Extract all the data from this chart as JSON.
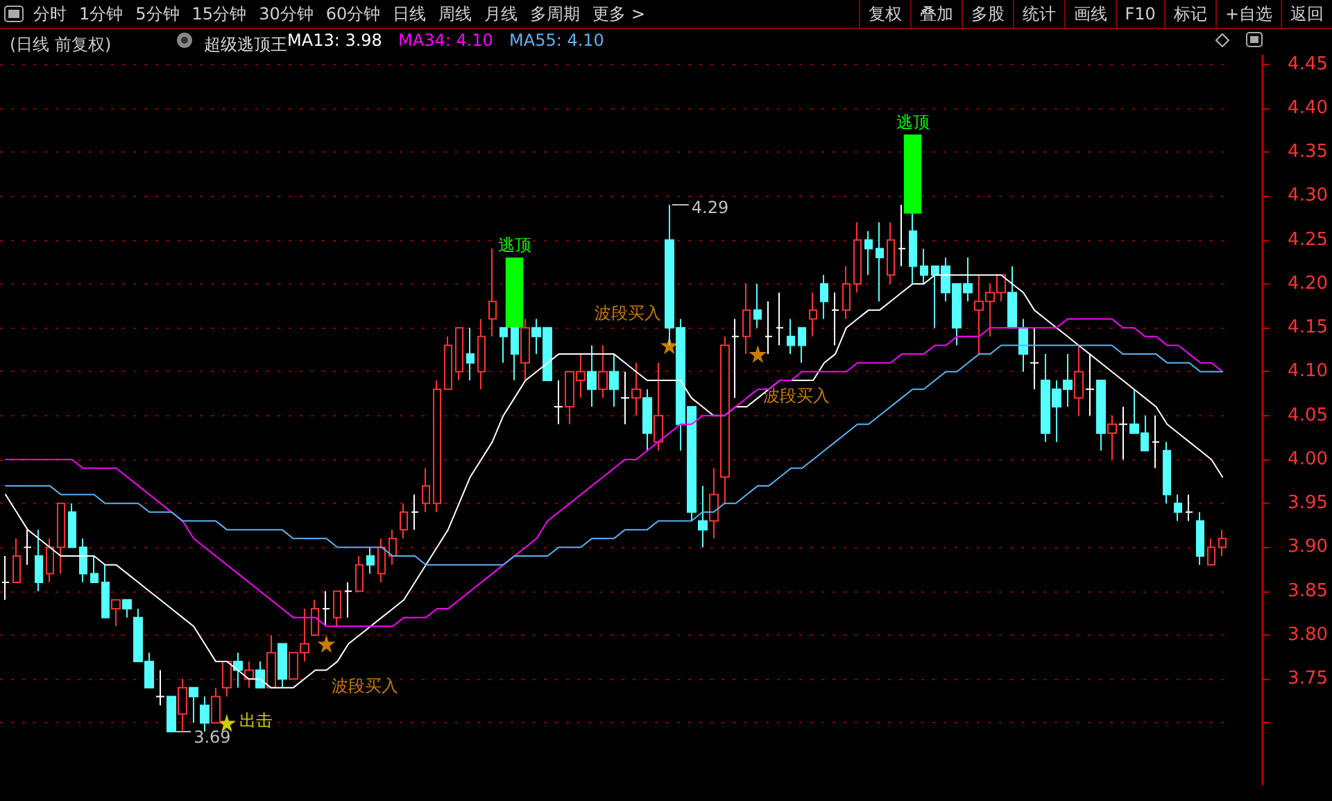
{
  "chart_data": {
    "type": "candlestick",
    "title": "(日线 前复权)",
    "subtitle": "超级逃顶王",
    "annotations": [
      "分时",
      "1分钟",
      "5分钟",
      "15分钟",
      "30分钟",
      "60分钟",
      "日线",
      "周线",
      "月线",
      "多周期",
      "更多 >",
      "复权",
      "叠加",
      "多股",
      "统计",
      "画线",
      "F10",
      "标记",
      "+自选",
      "返回",
      "4.29",
      "3.69"
    ],
    "categories": [
      null,
      null,
      null,
      null,
      null,
      null,
      null,
      null,
      null,
      null,
      null,
      null,
      null,
      null,
      null,
      null,
      null,
      null,
      null,
      null,
      null,
      null,
      null,
      null,
      null,
      null,
      null,
      null,
      null,
      null,
      null,
      null,
      null,
      null,
      null,
      null,
      null,
      null,
      null,
      null,
      null,
      null,
      null,
      null,
      null,
      null,
      null,
      null,
      null,
      null,
      null,
      null,
      null,
      null,
      null,
      null,
      null,
      null,
      null,
      null,
      null,
      null,
      null,
      null,
      null,
      null,
      null,
      null,
      null,
      null,
      null,
      null,
      null,
      null,
      null,
      null,
      null,
      null,
      null,
      null,
      null,
      null,
      null,
      null,
      null,
      null,
      null,
      null,
      null,
      null,
      null,
      null,
      null,
      null,
      null,
      null,
      null,
      null,
      null,
      null,
      null,
      null,
      null,
      null,
      null,
      null,
      null,
      null,
      null,
      null,
      null
    ],
    "ylim": [
      3.63,
      4.46
    ],
    "yticks": [
      {
        "value": 3.7,
        "label": null
      },
      {
        "value": 3.75,
        "label": "3.75"
      },
      {
        "value": 3.8,
        "label": "3.80"
      },
      {
        "value": 3.85,
        "label": "3.85"
      },
      {
        "value": 3.9,
        "label": "3.90"
      },
      {
        "value": 3.95,
        "label": "3.95"
      },
      {
        "value": 4.0,
        "label": "4.00"
      },
      {
        "value": 4.05,
        "label": "4.05"
      },
      {
        "value": 4.1,
        "label": "4.10"
      },
      {
        "value": 4.15,
        "label": "4.15"
      },
      {
        "value": 4.2,
        "label": "4.20"
      },
      {
        "value": 4.25,
        "label": "4.25"
      },
      {
        "value": 4.3,
        "label": "4.30"
      },
      {
        "value": 4.35,
        "label": "4.35"
      },
      {
        "value": 4.4,
        "label": "4.40"
      },
      {
        "value": 4.45,
        "label": "4.45"
      }
    ],
    "grid": "y",
    "tick_labels": "y",
    "line_style": "solid",
    "series": [
      {
        "ohlc": [
          [
            3.86,
            3.89,
            3.84,
            3.86
          ],
          [
            3.86,
            3.91,
            3.86,
            3.89
          ],
          [
            3.9,
            3.92,
            3.88,
            3.9
          ],
          [
            3.89,
            3.92,
            3.85,
            3.86
          ],
          [
            3.87,
            3.91,
            3.86,
            3.9
          ],
          [
            3.9,
            3.95,
            3.87,
            3.95
          ],
          [
            3.94,
            3.95,
            3.9,
            3.9
          ],
          [
            3.9,
            3.91,
            3.86,
            3.87
          ],
          [
            3.87,
            3.89,
            3.86,
            3.86
          ],
          [
            3.86,
            3.88,
            3.82,
            3.82
          ],
          [
            3.83,
            3.84,
            3.81,
            3.84
          ],
          [
            3.84,
            3.84,
            3.82,
            3.83
          ],
          [
            3.82,
            3.83,
            3.77,
            3.77
          ],
          [
            3.77,
            3.78,
            3.74,
            3.74
          ],
          [
            3.73,
            3.76,
            3.72,
            3.73
          ],
          [
            3.73,
            3.73,
            3.69,
            3.69
          ],
          [
            3.71,
            3.75,
            3.69,
            3.74
          ],
          [
            3.74,
            3.74,
            3.7,
            3.73
          ],
          [
            3.72,
            3.73,
            3.69,
            3.7
          ],
          [
            3.7,
            3.74,
            3.7,
            3.73
          ],
          [
            3.74,
            3.77,
            3.73,
            3.77
          ],
          [
            3.77,
            3.78,
            3.74,
            3.76
          ],
          [
            3.75,
            3.77,
            3.74,
            3.76
          ],
          [
            3.76,
            3.77,
            3.74,
            3.74
          ],
          [
            3.74,
            3.8,
            3.74,
            3.78
          ],
          [
            3.79,
            3.79,
            3.74,
            3.75
          ],
          [
            3.75,
            3.78,
            3.75,
            3.78
          ],
          [
            3.78,
            3.83,
            3.77,
            3.79
          ],
          [
            3.8,
            3.84,
            3.8,
            3.83
          ],
          [
            3.83,
            3.85,
            3.81,
            3.83
          ],
          [
            3.82,
            3.85,
            3.81,
            3.85
          ],
          [
            3.85,
            3.86,
            3.82,
            3.85
          ],
          [
            3.85,
            3.89,
            3.85,
            3.88
          ],
          [
            3.89,
            3.9,
            3.87,
            3.88
          ],
          [
            3.87,
            3.91,
            3.86,
            3.9
          ],
          [
            3.89,
            3.92,
            3.88,
            3.91
          ],
          [
            3.92,
            3.95,
            3.91,
            3.94
          ],
          [
            3.94,
            3.96,
            3.92,
            3.94
          ],
          [
            3.95,
            3.99,
            3.94,
            3.97
          ],
          [
            3.95,
            4.09,
            3.94,
            4.08
          ],
          [
            4.08,
            4.14,
            4.08,
            4.13
          ],
          [
            4.1,
            4.15,
            4.09,
            4.15
          ],
          [
            4.12,
            4.15,
            4.09,
            4.11
          ],
          [
            4.1,
            4.16,
            4.08,
            4.14
          ],
          [
            4.16,
            4.24,
            4.14,
            4.18
          ],
          [
            4.15,
            4.15,
            4.11,
            4.14
          ],
          [
            4.15,
            4.15,
            4.09,
            4.12
          ],
          [
            4.11,
            4.16,
            4.09,
            4.15
          ],
          [
            4.15,
            4.16,
            4.12,
            4.14
          ],
          [
            4.15,
            4.15,
            4.09,
            4.09
          ],
          [
            4.06,
            4.09,
            4.04,
            4.06
          ],
          [
            4.06,
            4.1,
            4.04,
            4.1
          ],
          [
            4.09,
            4.12,
            4.07,
            4.1
          ],
          [
            4.1,
            4.13,
            4.06,
            4.08
          ],
          [
            4.08,
            4.13,
            4.07,
            4.1
          ],
          [
            4.1,
            4.12,
            4.06,
            4.08
          ],
          [
            4.07,
            4.1,
            4.04,
            4.07
          ],
          [
            4.07,
            4.11,
            4.05,
            4.08
          ],
          [
            4.07,
            4.08,
            4.01,
            4.03
          ],
          [
            4.02,
            4.11,
            4.01,
            4.05
          ],
          [
            4.25,
            4.29,
            4.13,
            4.15
          ],
          [
            4.15,
            4.16,
            4.01,
            4.04
          ],
          [
            4.06,
            4.06,
            3.93,
            3.94
          ],
          [
            3.93,
            3.97,
            3.9,
            3.92
          ],
          [
            3.93,
            3.99,
            3.91,
            3.96
          ],
          [
            3.98,
            4.14,
            3.95,
            4.13
          ],
          [
            4.14,
            4.16,
            4.07,
            4.14
          ],
          [
            4.14,
            4.2,
            4.12,
            4.17
          ],
          [
            4.17,
            4.2,
            4.15,
            4.16
          ],
          [
            4.14,
            4.18,
            4.12,
            4.14
          ],
          [
            4.15,
            4.19,
            4.13,
            4.15
          ],
          [
            4.14,
            4.16,
            4.12,
            4.13
          ],
          [
            4.15,
            4.15,
            4.11,
            4.13
          ],
          [
            4.16,
            4.19,
            4.14,
            4.17
          ],
          [
            4.2,
            4.21,
            4.16,
            4.18
          ],
          [
            4.17,
            4.19,
            4.13,
            4.17
          ],
          [
            4.17,
            4.22,
            4.16,
            4.2
          ],
          [
            4.2,
            4.27,
            4.19,
            4.25
          ],
          [
            4.25,
            4.26,
            4.21,
            4.24
          ],
          [
            4.24,
            4.27,
            4.18,
            4.23
          ],
          [
            4.21,
            4.27,
            4.2,
            4.25
          ],
          [
            4.24,
            4.29,
            4.22,
            4.24
          ],
          [
            4.26,
            4.28,
            4.2,
            4.22
          ],
          [
            4.22,
            4.24,
            4.2,
            4.21
          ],
          [
            4.22,
            4.22,
            4.15,
            4.21
          ],
          [
            4.22,
            4.23,
            4.18,
            4.19
          ],
          [
            4.2,
            4.2,
            4.13,
            4.15
          ],
          [
            4.2,
            4.23,
            4.18,
            4.19
          ],
          [
            4.17,
            4.21,
            4.12,
            4.18
          ],
          [
            4.18,
            4.2,
            4.14,
            4.19
          ],
          [
            4.19,
            4.21,
            4.18,
            4.21
          ],
          [
            4.19,
            4.22,
            4.15,
            4.15
          ],
          [
            4.15,
            4.16,
            4.1,
            4.12
          ],
          [
            4.11,
            4.15,
            4.08,
            4.11
          ],
          [
            4.09,
            4.12,
            4.02,
            4.03
          ],
          [
            4.08,
            4.09,
            4.02,
            4.06
          ],
          [
            4.09,
            4.12,
            4.06,
            4.08
          ],
          [
            4.07,
            4.13,
            4.05,
            4.1
          ],
          [
            4.08,
            4.12,
            4.05,
            4.08
          ],
          [
            4.09,
            4.09,
            4.01,
            4.03
          ],
          [
            4.03,
            4.05,
            4.0,
            4.04
          ],
          [
            4.04,
            4.06,
            4.0,
            4.04
          ],
          [
            4.04,
            4.08,
            4.03,
            4.03
          ],
          [
            4.03,
            4.05,
            4.01,
            4.01
          ],
          [
            4.02,
            4.05,
            3.99,
            4.02
          ],
          [
            4.01,
            4.02,
            3.95,
            3.96
          ],
          [
            3.95,
            3.96,
            3.93,
            3.94
          ],
          [
            3.94,
            3.96,
            3.93,
            3.94
          ],
          [
            3.93,
            3.94,
            3.88,
            3.89
          ],
          [
            3.88,
            3.91,
            3.88,
            3.9
          ],
          [
            3.9,
            3.92,
            3.89,
            3.91
          ]
        ],
        "colors": [
          "#ffffff",
          "#ff3232",
          "#ffffff",
          "#54ffff",
          "#ff3232",
          "#ff3232",
          "#54ffff",
          "#54ffff",
          "#54ffff",
          "#54ffff",
          "#ff3232",
          "#54ffff",
          "#54ffff",
          "#54ffff",
          "#ffffff",
          "#54ffff",
          "#ff3232",
          "#54ffff",
          "#54ffff",
          "#ff3232",
          "#ff3232",
          "#54ffff",
          "#ff3232",
          "#54ffff",
          "#ff3232",
          "#54ffff",
          "#ff3232",
          "#ff3232",
          "#ff3232",
          "#ffffff",
          "#ff3232",
          "#ffffff",
          "#ff3232",
          "#54ffff",
          "#ff3232",
          "#ff3232",
          "#ff3232",
          "#ffffff",
          "#ff3232",
          "#ff3232",
          "#ff3232",
          "#ff3232",
          "#54ffff",
          "#ff3232",
          "#ff3232",
          "#54ffff",
          "#54ffff",
          "#ff3232",
          "#54ffff",
          "#54ffff",
          "#ffffff",
          "#ff3232",
          "#ff3232",
          "#54ffff",
          "#ff3232",
          "#54ffff",
          "#ffffff",
          "#ff3232",
          "#54ffff",
          "#ff3232",
          "#54ffff",
          "#54ffff",
          "#54ffff",
          "#54ffff",
          "#ff3232",
          "#ff3232",
          "#ffffff",
          "#ff3232",
          "#54ffff",
          "#ffffff",
          "#ffffff",
          "#54ffff",
          "#54ffff",
          "#ff3232",
          "#54ffff",
          "#ffffff",
          "#ff3232",
          "#ff3232",
          "#54ffff",
          "#54ffff",
          "#ff3232",
          "#ffffff",
          "#54ffff",
          "#54ffff",
          "#54ffff",
          "#54ffff",
          "#54ffff",
          "#54ffff",
          "#ff3232",
          "#ff3232",
          "#ff3232",
          "#54ffff",
          "#54ffff",
          "#ffffff",
          "#54ffff",
          "#54ffff",
          "#54ffff",
          "#ff3232",
          "#ffffff",
          "#54ffff",
          "#ff3232",
          "#ffffff",
          "#54ffff",
          "#54ffff",
          "#ffffff",
          "#54ffff",
          "#54ffff",
          "#ffffff",
          "#54ffff",
          "#ff3232",
          "#ff3232"
        ]
      },
      {
        "type": "line",
        "name": "MA13: 3.98",
        "color": "#ffffff",
        "values": [
          3.96,
          3.94,
          3.92,
          3.91,
          3.9,
          3.89,
          3.89,
          3.89,
          3.89,
          3.88,
          3.88,
          3.87,
          3.86,
          3.85,
          3.84,
          3.83,
          3.82,
          3.81,
          3.79,
          3.77,
          3.77,
          3.76,
          3.75,
          3.75,
          3.74,
          3.74,
          3.74,
          3.75,
          3.76,
          3.76,
          3.77,
          3.79,
          3.8,
          3.81,
          3.82,
          3.83,
          3.84,
          3.86,
          3.88,
          3.9,
          3.92,
          3.95,
          3.98,
          4.0,
          4.02,
          4.05,
          4.07,
          4.09,
          4.1,
          4.11,
          4.12,
          4.12,
          4.12,
          4.12,
          4.12,
          4.12,
          4.11,
          4.1,
          4.09,
          4.09,
          4.09,
          4.09,
          4.07,
          4.06,
          4.05,
          4.05,
          4.06,
          4.06,
          4.07,
          4.08,
          4.09,
          4.09,
          4.09,
          4.09,
          4.11,
          4.12,
          4.15,
          4.16,
          4.17,
          4.17,
          4.18,
          4.19,
          4.2,
          4.2,
          4.21,
          4.21,
          4.21,
          4.21,
          4.21,
          4.21,
          4.21,
          4.2,
          4.19,
          4.17,
          4.16,
          4.15,
          4.14,
          4.13,
          4.12,
          4.11,
          4.1,
          4.09,
          4.08,
          4.07,
          4.06,
          4.04,
          4.03,
          4.02,
          4.01,
          4.0,
          3.98
        ]
      },
      {
        "type": "line",
        "name": "MA34: 4.10",
        "color": "#ff00ff",
        "values": [
          4.0,
          4.0,
          4.0,
          4.0,
          4.0,
          4.0,
          4.0,
          3.99,
          3.99,
          3.99,
          3.99,
          3.98,
          3.97,
          3.96,
          3.95,
          3.94,
          3.93,
          3.91,
          3.9,
          3.89,
          3.88,
          3.87,
          3.86,
          3.85,
          3.84,
          3.83,
          3.82,
          3.82,
          3.82,
          3.81,
          3.81,
          3.81,
          3.81,
          3.81,
          3.81,
          3.81,
          3.82,
          3.82,
          3.82,
          3.83,
          3.83,
          3.84,
          3.85,
          3.86,
          3.87,
          3.88,
          3.89,
          3.9,
          3.91,
          3.93,
          3.94,
          3.95,
          3.96,
          3.97,
          3.98,
          3.99,
          4.0,
          4.0,
          4.01,
          4.02,
          4.03,
          4.04,
          4.04,
          4.05,
          4.05,
          4.05,
          4.06,
          4.07,
          4.08,
          4.08,
          4.09,
          4.09,
          4.1,
          4.1,
          4.1,
          4.1,
          4.1,
          4.11,
          4.11,
          4.11,
          4.11,
          4.12,
          4.12,
          4.12,
          4.13,
          4.13,
          4.14,
          4.14,
          4.14,
          4.15,
          4.15,
          4.15,
          4.15,
          4.15,
          4.15,
          4.15,
          4.16,
          4.16,
          4.16,
          4.16,
          4.16,
          4.15,
          4.15,
          4.14,
          4.14,
          4.13,
          4.13,
          4.12,
          4.11,
          4.11,
          4.1
        ]
      },
      {
        "type": "line",
        "name": "MA55: 4.10",
        "color": "#5ab4f5",
        "values": [
          3.97,
          3.97,
          3.97,
          3.97,
          3.97,
          3.96,
          3.96,
          3.96,
          3.96,
          3.95,
          3.95,
          3.95,
          3.95,
          3.94,
          3.94,
          3.94,
          3.93,
          3.93,
          3.93,
          3.93,
          3.92,
          3.92,
          3.92,
          3.92,
          3.92,
          3.92,
          3.91,
          3.91,
          3.91,
          3.91,
          3.9,
          3.9,
          3.9,
          3.9,
          3.9,
          3.89,
          3.89,
          3.89,
          3.88,
          3.88,
          3.88,
          3.88,
          3.88,
          3.88,
          3.88,
          3.88,
          3.89,
          3.89,
          3.89,
          3.89,
          3.9,
          3.9,
          3.9,
          3.91,
          3.91,
          3.91,
          3.92,
          3.92,
          3.92,
          3.93,
          3.93,
          3.93,
          3.93,
          3.94,
          3.94,
          3.95,
          3.95,
          3.96,
          3.97,
          3.97,
          3.98,
          3.99,
          3.99,
          4.0,
          4.01,
          4.02,
          4.03,
          4.04,
          4.04,
          4.05,
          4.06,
          4.07,
          4.08,
          4.08,
          4.09,
          4.1,
          4.1,
          4.11,
          4.12,
          4.12,
          4.13,
          4.13,
          4.13,
          4.13,
          4.13,
          4.13,
          4.13,
          4.13,
          4.13,
          4.13,
          4.13,
          4.12,
          4.12,
          4.12,
          4.12,
          4.11,
          4.11,
          4.11,
          4.1,
          4.1,
          4.1
        ]
      },
      {
        "type": "bar",
        "color": "#00ff00",
        "base": [
          null,
          null,
          null,
          null,
          null,
          null,
          null,
          null,
          null,
          null,
          null,
          null,
          null,
          null,
          null,
          null,
          null,
          null,
          null,
          null,
          null,
          null,
          null,
          null,
          null,
          null,
          null,
          null,
          null,
          null,
          null,
          null,
          null,
          null,
          null,
          null,
          null,
          null,
          null,
          null,
          null,
          null,
          null,
          null,
          null,
          null,
          4.15,
          null,
          null,
          null,
          null,
          null,
          null,
          null,
          null,
          null,
          null,
          null,
          null,
          null,
          null,
          null,
          null,
          null,
          null,
          null,
          null,
          null,
          null,
          null,
          null,
          null,
          null,
          null,
          null,
          null,
          null,
          null,
          null,
          null,
          null,
          null,
          4.28,
          null,
          null,
          null,
          null,
          null,
          null,
          null,
          null,
          null,
          null,
          null,
          null,
          null,
          null,
          null,
          null,
          null,
          null,
          null,
          null,
          null,
          null,
          null,
          null,
          null,
          null,
          null,
          null
        ],
        "values": [
          null,
          null,
          null,
          null,
          null,
          null,
          null,
          null,
          null,
          null,
          null,
          null,
          null,
          null,
          null,
          null,
          null,
          null,
          null,
          null,
          null,
          null,
          null,
          null,
          null,
          null,
          null,
          null,
          null,
          null,
          null,
          null,
          null,
          null,
          null,
          null,
          null,
          null,
          null,
          null,
          null,
          null,
          null,
          null,
          null,
          null,
          0.08,
          null,
          null,
          null,
          null,
          null,
          null,
          null,
          null,
          null,
          null,
          null,
          null,
          null,
          null,
          null,
          null,
          null,
          null,
          null,
          null,
          null,
          null,
          null,
          null,
          null,
          null,
          null,
          null,
          null,
          null,
          null,
          null,
          null,
          null,
          null,
          0.09,
          null,
          null,
          null,
          null,
          null,
          null,
          null,
          null,
          null,
          null,
          null,
          null,
          null,
          null,
          null,
          null,
          null,
          null,
          null,
          null,
          null,
          null,
          null,
          null,
          null,
          null,
          null,
          null
        ],
        "value_labels": [
          null,
          null,
          null,
          null,
          null,
          null,
          null,
          null,
          null,
          null,
          null,
          null,
          null,
          null,
          null,
          null,
          null,
          null,
          null,
          null,
          null,
          null,
          null,
          null,
          null,
          null,
          null,
          null,
          null,
          null,
          null,
          null,
          null,
          null,
          null,
          null,
          null,
          null,
          null,
          null,
          null,
          null,
          null,
          null,
          null,
          null,
          "逃顶",
          null,
          null,
          null,
          null,
          null,
          null,
          null,
          null,
          null,
          null,
          null,
          null,
          null,
          null,
          null,
          null,
          null,
          null,
          null,
          null,
          null,
          null,
          null,
          null,
          null,
          null,
          null,
          null,
          null,
          null,
          null,
          null,
          null,
          null,
          null,
          "逃顶",
          null,
          null,
          null,
          null,
          null,
          null,
          null,
          null,
          null,
          null,
          null,
          null,
          null,
          null,
          null,
          null,
          null,
          null,
          null,
          null,
          null,
          null,
          null,
          null,
          null,
          null,
          null,
          null
        ]
      },
      {
        "type": "scatter",
        "marker": "star",
        "color": "#ffff00",
        "values": [
          null,
          null,
          null,
          null,
          null,
          null,
          null,
          null,
          null,
          null,
          null,
          null,
          null,
          null,
          null,
          null,
          null,
          null,
          null,
          null,
          3.7,
          null,
          null,
          null,
          null,
          null,
          null,
          null,
          null,
          null,
          null,
          null,
          null,
          null,
          null,
          null,
          null,
          null,
          null,
          null,
          null,
          null,
          null,
          null,
          null,
          null,
          null,
          null,
          null,
          null,
          null,
          null,
          null,
          null,
          null,
          null,
          null,
          null,
          null,
          null,
          null,
          null,
          null,
          null,
          null,
          null,
          null,
          null,
          null,
          null,
          null,
          null,
          null,
          null,
          null,
          null,
          null,
          null,
          null,
          null,
          null,
          null,
          null,
          null,
          null,
          null,
          null,
          null,
          null,
          null,
          null,
          null,
          null,
          null,
          null,
          null,
          null,
          null,
          null,
          null,
          null,
          null,
          null,
          null,
          null,
          null,
          null,
          null,
          null,
          null,
          null
        ],
        "value_labels": [
          null,
          null,
          null,
          null,
          null,
          null,
          null,
          null,
          null,
          null,
          null,
          null,
          null,
          null,
          null,
          null,
          null,
          null,
          null,
          null,
          "出击",
          null,
          null,
          null,
          null,
          null,
          null,
          null,
          null,
          null,
          null,
          null,
          null,
          null,
          null,
          null,
          null,
          null,
          null,
          null,
          null,
          null,
          null,
          null,
          null,
          null,
          null,
          null,
          null,
          null,
          null,
          null,
          null,
          null,
          null,
          null,
          null,
          null,
          null,
          null,
          null,
          null,
          null,
          null,
          null,
          null,
          null,
          null,
          null,
          null,
          null,
          null,
          null,
          null,
          null,
          null,
          null,
          null,
          null,
          null,
          null,
          null,
          null,
          null,
          null,
          null,
          null,
          null,
          null,
          null,
          null,
          null,
          null,
          null,
          null,
          null,
          null,
          null,
          null,
          null,
          null,
          null,
          null,
          null,
          null,
          null,
          null,
          null,
          null,
          null,
          null
        ]
      },
      {
        "type": "scatter",
        "marker": "star",
        "color": "#ff9900",
        "values": [
          null,
          null,
          null,
          null,
          null,
          null,
          null,
          null,
          null,
          null,
          null,
          null,
          null,
          null,
          null,
          null,
          null,
          null,
          null,
          null,
          null,
          null,
          null,
          null,
          null,
          null,
          null,
          null,
          null,
          3.79,
          null,
          null,
          null,
          null,
          null,
          null,
          null,
          null,
          null,
          null,
          null,
          null,
          null,
          null,
          null,
          null,
          null,
          null,
          null,
          null,
          null,
          null,
          null,
          null,
          null,
          null,
          null,
          null,
          null,
          null,
          4.13,
          null,
          null,
          null,
          null,
          null,
          null,
          null,
          4.12,
          null,
          null,
          null,
          null,
          null,
          null,
          null,
          null,
          null,
          null,
          null,
          null,
          null,
          null,
          null,
          null,
          null,
          null,
          null,
          null,
          null,
          null,
          null,
          null,
          null,
          null,
          null,
          null,
          null,
          null,
          null,
          null,
          null,
          null,
          null,
          null,
          null,
          null,
          null,
          null,
          null,
          null
        ],
        "value_labels": [
          null,
          null,
          null,
          null,
          null,
          null,
          null,
          null,
          null,
          null,
          null,
          null,
          null,
          null,
          null,
          null,
          null,
          null,
          null,
          null,
          null,
          null,
          null,
          null,
          null,
          null,
          null,
          null,
          null,
          "波段买入",
          null,
          null,
          null,
          null,
          null,
          null,
          null,
          null,
          null,
          null,
          null,
          null,
          null,
          null,
          null,
          null,
          null,
          null,
          null,
          null,
          null,
          null,
          null,
          null,
          null,
          null,
          null,
          null,
          null,
          null,
          "波段买入",
          null,
          null,
          null,
          null,
          null,
          null,
          null,
          "波段买入",
          null,
          null,
          null,
          null,
          null,
          null,
          null,
          null,
          null,
          null,
          null,
          null,
          null,
          null,
          null,
          null,
          null,
          null,
          null,
          null,
          null,
          null,
          null,
          null,
          null,
          null,
          null,
          null,
          null,
          null,
          null,
          null,
          null,
          null,
          null,
          null,
          null,
          null,
          null,
          null,
          null,
          null
        ]
      }
    ]
  }
}
